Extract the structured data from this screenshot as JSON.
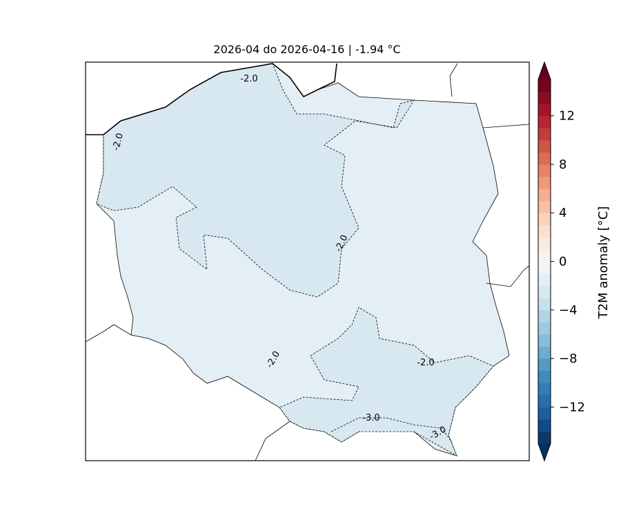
{
  "title": "2026-04 do 2026-04-16 | -1.94 °C",
  "colorbar": {
    "label": "T2M anomaly [°C]",
    "colormap": "RdBu_r",
    "range": [
      -15,
      15
    ],
    "step": 1,
    "extend": "both",
    "ticks": [
      "12",
      "8",
      "4",
      "0",
      "−4",
      "−8",
      "−12"
    ],
    "tick_values": [
      12,
      8,
      4,
      0,
      -4,
      -8,
      -12
    ]
  },
  "map": {
    "region": "Poland",
    "mean_anomaly": -1.94,
    "fill_colors": {
      "above_-2": "#e4eef5",
      "below_-2": "#d8e8f1",
      "below_-3": "#c9dfec"
    },
    "contour_labels": [
      "-2.0",
      "-2.0",
      "-2.0",
      "-2.0",
      "-2.0",
      "-3.0",
      "-3.0"
    ]
  }
}
